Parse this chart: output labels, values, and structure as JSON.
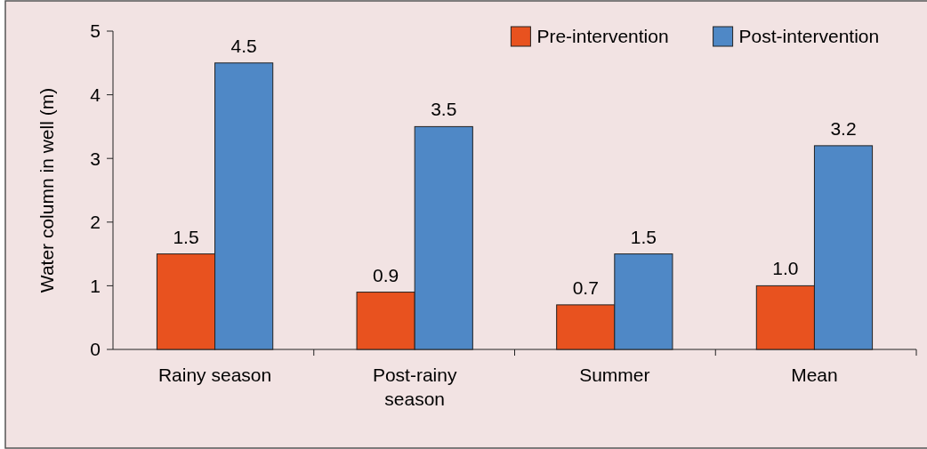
{
  "chart_data": {
    "type": "bar",
    "ylabel": "Water column in well (m)",
    "categories": [
      "Rainy season",
      "Post-rainy season",
      "Summer",
      "Mean"
    ],
    "series": [
      {
        "name": "Pre-intervention",
        "color": "#e8521f",
        "values": [
          1.5,
          0.9,
          0.7,
          1.0
        ],
        "value_labels": [
          "1.5",
          "0.9",
          "0.7",
          "1.0"
        ]
      },
      {
        "name": "Post-intervention",
        "color": "#4f88c6",
        "values": [
          4.5,
          3.5,
          1.5,
          3.2
        ],
        "value_labels": [
          "4.5",
          "3.5",
          "1.5",
          "3.2"
        ]
      }
    ],
    "ylim": [
      0,
      5
    ],
    "yticks": [
      0,
      1,
      2,
      3,
      4,
      5
    ],
    "legend": "top right"
  }
}
